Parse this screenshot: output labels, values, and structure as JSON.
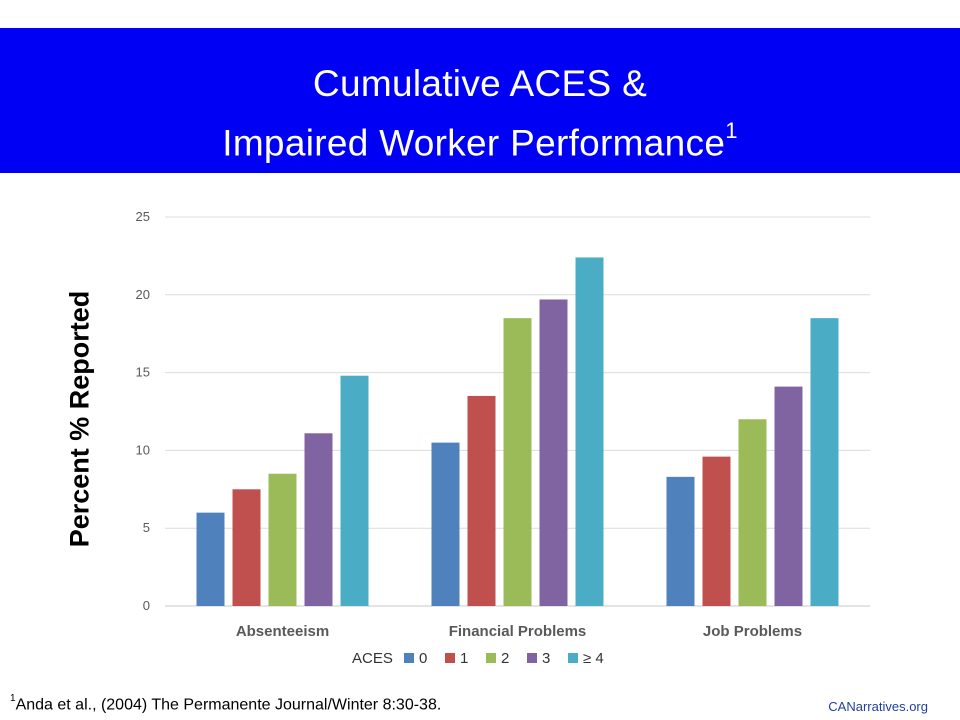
{
  "title": {
    "line1": "Cumulative ACES &",
    "line2": "Impaired Worker Performance",
    "superscript": "1"
  },
  "footnote": {
    "marker": "1",
    "text": "Anda et al., (2004) The Permanente Journal/Winter 8:30-38."
  },
  "credit": "CANarratives.org",
  "chart_data": {
    "type": "bar",
    "title": "",
    "ylabel": "Percent % Reported",
    "xlabel": "",
    "ylim": [
      0,
      25
    ],
    "yticks": [
      0,
      5,
      10,
      15,
      20,
      25
    ],
    "grid": true,
    "legend_title": "ACES",
    "legend_position": "bottom",
    "categories": [
      "Absenteeism",
      "Financial Problems",
      "Job Problems"
    ],
    "series": [
      {
        "name": "0",
        "color": "#4f81bd",
        "values": [
          6.0,
          10.5,
          8.3
        ]
      },
      {
        "name": "1",
        "color": "#c0504d",
        "values": [
          7.5,
          13.5,
          9.6
        ]
      },
      {
        "name": "2",
        "color": "#9bbb59",
        "values": [
          8.5,
          18.5,
          12.0
        ]
      },
      {
        "name": "3",
        "color": "#8064a2",
        "values": [
          11.1,
          19.7,
          14.1
        ]
      },
      {
        "name": "≥ 4",
        "color": "#4bacc6",
        "values": [
          14.8,
          22.4,
          18.5
        ]
      }
    ]
  }
}
